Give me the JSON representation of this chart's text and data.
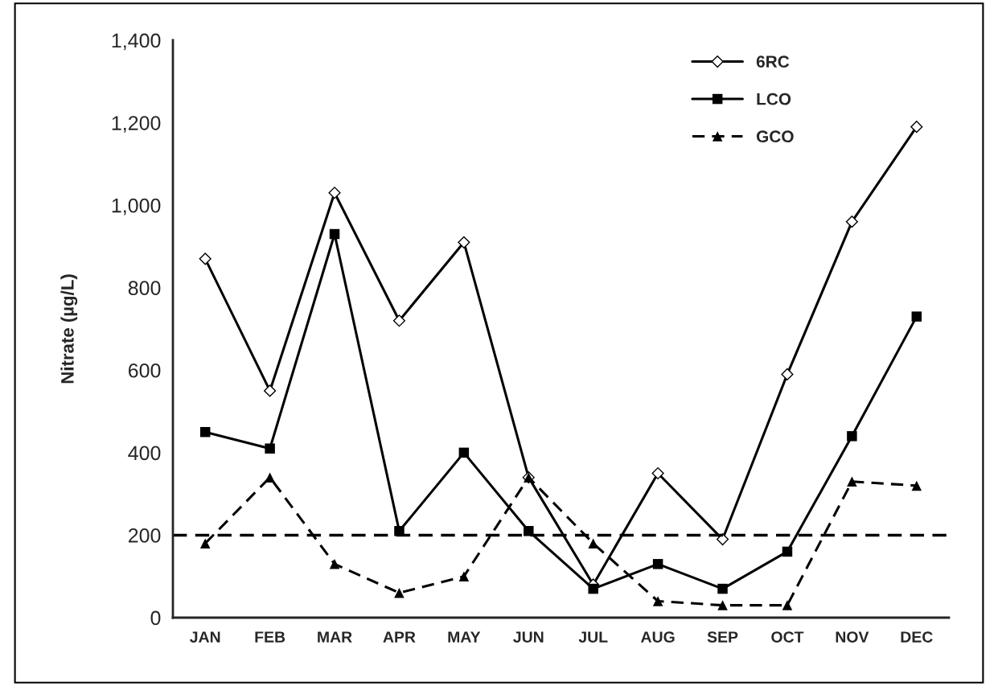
{
  "chart_data": {
    "type": "line",
    "ylabel": "Nitrate (µg/L)",
    "categories": [
      "JAN",
      "FEB",
      "MAR",
      "APR",
      "MAY",
      "JUN",
      "JUL",
      "AUG",
      "SEP",
      "OCT",
      "NOV",
      "DEC"
    ],
    "series": [
      {
        "name": "6RC",
        "color": "#000000",
        "marker": "diamond",
        "line_style": "solid",
        "values": [
          870,
          550,
          1030,
          720,
          910,
          340,
          80,
          350,
          190,
          590,
          960,
          1190
        ]
      },
      {
        "name": "LCO",
        "color": "#000000",
        "marker": "square",
        "line_style": "solid",
        "values": [
          450,
          410,
          930,
          210,
          400,
          210,
          70,
          130,
          70,
          160,
          440,
          730
        ]
      },
      {
        "name": "GCO",
        "color": "#000000",
        "marker": "triangle",
        "line_style": "dashed",
        "values": [
          180,
          340,
          130,
          60,
          100,
          340,
          180,
          40,
          30,
          30,
          330,
          320
        ]
      }
    ],
    "ylim": [
      0,
      1400
    ],
    "yticks": [
      {
        "value": 0,
        "label": "0"
      },
      {
        "value": 200,
        "label": "200"
      },
      {
        "value": 400,
        "label": "400"
      },
      {
        "value": 600,
        "label": "600"
      },
      {
        "value": 800,
        "label": "800"
      },
      {
        "value": 1000,
        "label": "1,000"
      },
      {
        "value": 1200,
        "label": "1,200"
      },
      {
        "value": 1400,
        "label": "1,400"
      }
    ],
    "ref_lines": [
      {
        "axis": "y",
        "value": 200,
        "color": "#000000",
        "line_style": "dashed"
      }
    ],
    "grid": false,
    "legend": "top right"
  }
}
